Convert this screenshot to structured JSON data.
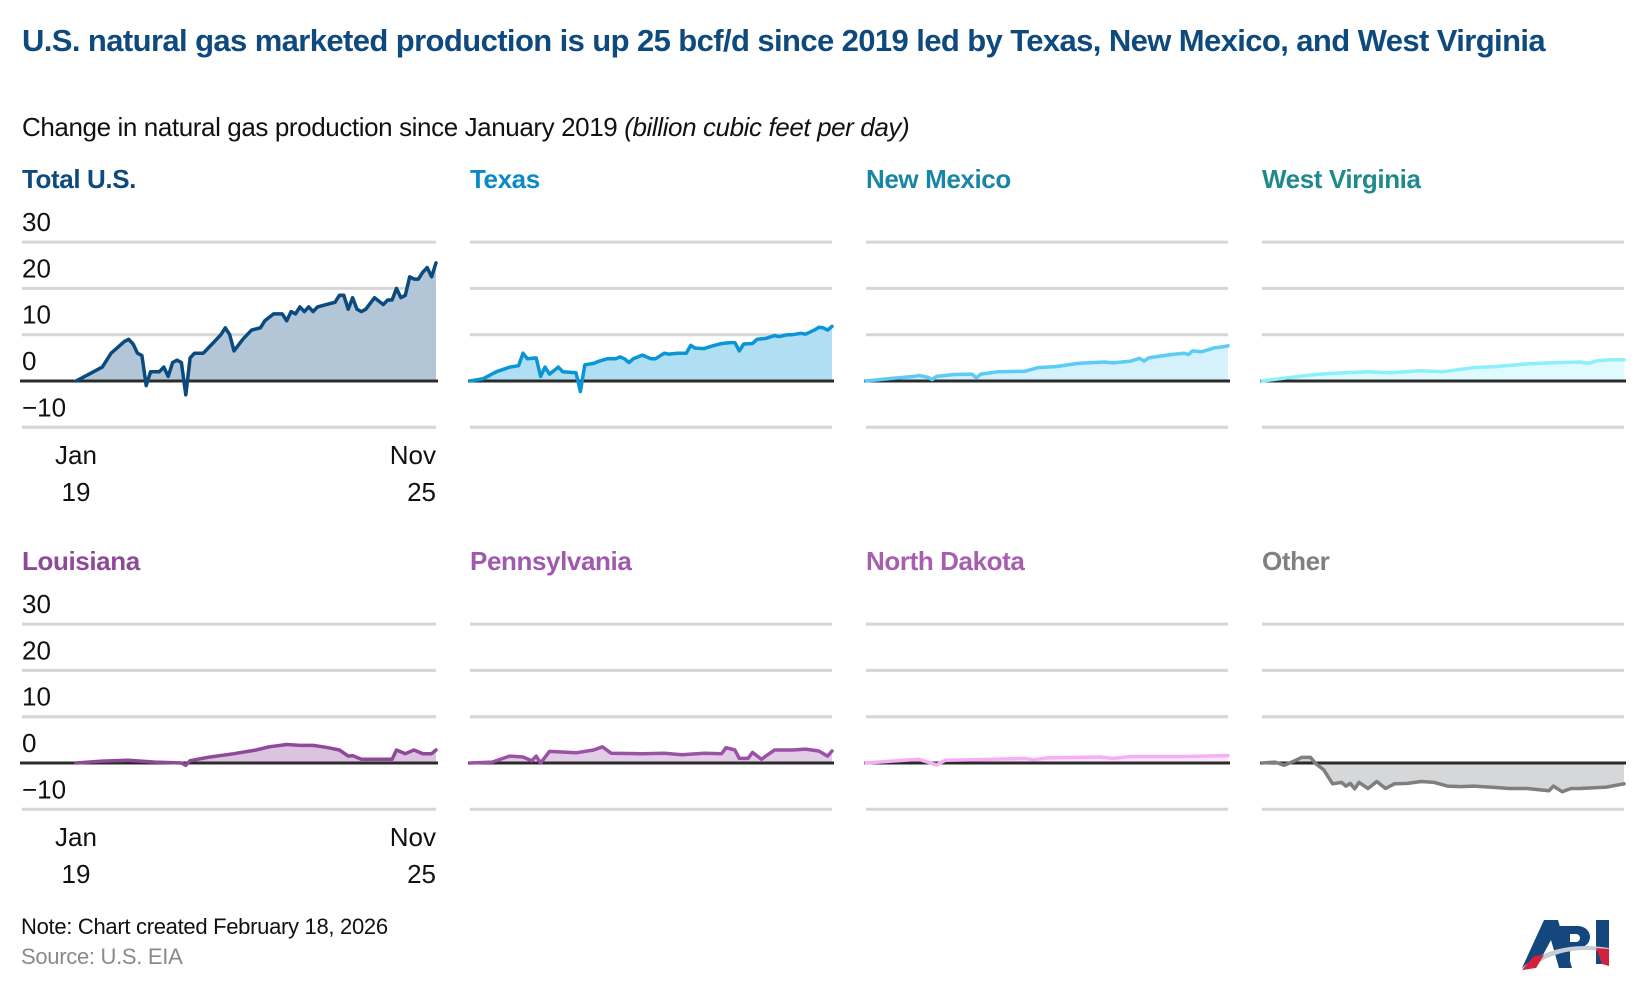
{
  "title": "U.S. natural gas marketed production is up 25 bcf/d since 2019 led by Texas, New Mexico, and West Virginia",
  "subtitle": "Change in natural gas production since January 2019",
  "subtitle_unit": "(billion cubic feet per day)",
  "note": "Note: Chart created February 18, 2026",
  "source": "Source: U.S. EIA",
  "logo_text": "API",
  "chart_data": {
    "type": "area",
    "layout": "small multiples, 2 rows x 4 columns, shared y axis",
    "ylim": [
      -10,
      30
    ],
    "yticks": [
      "30",
      "20",
      "10",
      "0",
      "−10"
    ],
    "ytick_values": [
      30,
      20,
      10,
      0,
      -10
    ],
    "xlim": [
      "2019-01",
      "2025-11"
    ],
    "xticks": [
      {
        "month": "Jan",
        "year": "19"
      },
      {
        "month": "Nov",
        "year": "25"
      }
    ],
    "grid": true,
    "panels": [
      {
        "name": "Total U.S.",
        "title_color": "#0f4a7e",
        "line_color": "#0b4a7e",
        "fill_color": "#b3c6d8",
        "points": [
          [
            "2019-01",
            0
          ],
          [
            "2019-04",
            1.5
          ],
          [
            "2019-07",
            3
          ],
          [
            "2019-09",
            6
          ],
          [
            "2019-12",
            8.5
          ],
          [
            "2020-01",
            9
          ],
          [
            "2020-02",
            8
          ],
          [
            "2020-03",
            6
          ],
          [
            "2020-04",
            5.5
          ],
          [
            "2020-05",
            -1
          ],
          [
            "2020-06",
            2
          ],
          [
            "2020-08",
            2
          ],
          [
            "2020-09",
            3
          ],
          [
            "2020-10",
            1
          ],
          [
            "2020-11",
            4
          ],
          [
            "2020-12",
            4.5
          ],
          [
            "2021-01",
            4
          ],
          [
            "2021-02",
            -3
          ],
          [
            "2021-03",
            5
          ],
          [
            "2021-04",
            6
          ],
          [
            "2021-06",
            6
          ],
          [
            "2021-07",
            7
          ],
          [
            "2021-08",
            8
          ],
          [
            "2021-10",
            10
          ],
          [
            "2021-11",
            11.5
          ],
          [
            "2021-12",
            10
          ],
          [
            "2022-01",
            6.5
          ],
          [
            "2022-03",
            9
          ],
          [
            "2022-05",
            11
          ],
          [
            "2022-07",
            11.5
          ],
          [
            "2022-08",
            13
          ],
          [
            "2022-10",
            14.5
          ],
          [
            "2022-12",
            14.5
          ],
          [
            "2023-01",
            13
          ],
          [
            "2023-02",
            15
          ],
          [
            "2023-03",
            14.5
          ],
          [
            "2023-04",
            16
          ],
          [
            "2023-05",
            15
          ],
          [
            "2023-06",
            16
          ],
          [
            "2023-07",
            15
          ],
          [
            "2023-08",
            16
          ],
          [
            "2023-10",
            16.5
          ],
          [
            "2023-12",
            17
          ],
          [
            "2024-01",
            18.5
          ],
          [
            "2024-02",
            18.5
          ],
          [
            "2024-03",
            15.5
          ],
          [
            "2024-04",
            18
          ],
          [
            "2024-05",
            15.5
          ],
          [
            "2024-06",
            15
          ],
          [
            "2024-07",
            15.5
          ],
          [
            "2024-09",
            18
          ],
          [
            "2024-11",
            16.5
          ],
          [
            "2024-12",
            17.5
          ],
          [
            "2025-01",
            17.5
          ],
          [
            "2025-02",
            20
          ],
          [
            "2025-03",
            18
          ],
          [
            "2025-04",
            18.5
          ],
          [
            "2025-05",
            22.5
          ],
          [
            "2025-06",
            22
          ],
          [
            "2025-07",
            22
          ],
          [
            "2025-08",
            23.5
          ],
          [
            "2025-09",
            24.5
          ],
          [
            "2025-10",
            22.5
          ],
          [
            "2025-11",
            25.5
          ]
        ]
      },
      {
        "name": "Texas",
        "title_color": "#0a8ac8",
        "line_color": "#0a96d6",
        "fill_color": "#b0def3",
        "points": [
          [
            "2019-01",
            0
          ],
          [
            "2019-04",
            0.5
          ],
          [
            "2019-07",
            2
          ],
          [
            "2019-10",
            3
          ],
          [
            "2019-12",
            3.3
          ],
          [
            "2020-01",
            6
          ],
          [
            "2020-02",
            4.8
          ],
          [
            "2020-04",
            5
          ],
          [
            "2020-05",
            1
          ],
          [
            "2020-06",
            3
          ],
          [
            "2020-07",
            1.5
          ],
          [
            "2020-09",
            3
          ],
          [
            "2020-10",
            2
          ],
          [
            "2021-01",
            1.8
          ],
          [
            "2021-02",
            -2.3
          ],
          [
            "2021-03",
            3.5
          ],
          [
            "2021-05",
            3.8
          ],
          [
            "2021-06",
            4.2
          ],
          [
            "2021-08",
            4.8
          ],
          [
            "2021-10",
            4.8
          ],
          [
            "2021-11",
            5.2
          ],
          [
            "2021-12",
            4.8
          ],
          [
            "2022-01",
            4
          ],
          [
            "2022-02",
            4.8
          ],
          [
            "2022-04",
            5.6
          ],
          [
            "2022-06",
            4.8
          ],
          [
            "2022-07",
            4.8
          ],
          [
            "2022-09",
            6
          ],
          [
            "2022-10",
            5.8
          ],
          [
            "2022-12",
            6
          ],
          [
            "2023-02",
            6
          ],
          [
            "2023-03",
            7.7
          ],
          [
            "2023-04",
            7.1
          ],
          [
            "2023-06",
            7
          ],
          [
            "2023-08",
            7.6
          ],
          [
            "2023-10",
            8.1
          ],
          [
            "2023-12",
            8.3
          ],
          [
            "2024-01",
            8.3
          ],
          [
            "2024-02",
            6.5
          ],
          [
            "2024-03",
            8
          ],
          [
            "2024-05",
            8.1
          ],
          [
            "2024-06",
            9
          ],
          [
            "2024-08",
            9.2
          ],
          [
            "2024-10",
            9.8
          ],
          [
            "2024-11",
            9.6
          ],
          [
            "2025-01",
            10
          ],
          [
            "2025-02",
            10
          ],
          [
            "2025-04",
            10.3
          ],
          [
            "2025-05",
            10.1
          ],
          [
            "2025-07",
            11
          ],
          [
            "2025-08",
            11.6
          ],
          [
            "2025-09",
            11.5
          ],
          [
            "2025-10",
            11
          ],
          [
            "2025-11",
            11.8
          ]
        ]
      },
      {
        "name": "New Mexico",
        "title_color": "#1a86a6",
        "line_color": "#5ccbf5",
        "fill_color": "#d4f1fc",
        "points": [
          [
            "2019-01",
            0
          ],
          [
            "2019-06",
            0.5
          ],
          [
            "2019-12",
            1.0
          ],
          [
            "2020-01",
            1.2
          ],
          [
            "2020-03",
            0.8
          ],
          [
            "2020-04",
            0.3
          ],
          [
            "2020-05",
            1.0
          ],
          [
            "2020-09",
            1.4
          ],
          [
            "2021-01",
            1.5
          ],
          [
            "2021-02",
            0.7
          ],
          [
            "2021-03",
            1.5
          ],
          [
            "2021-07",
            2
          ],
          [
            "2022-01",
            2.1
          ],
          [
            "2022-04",
            2.9
          ],
          [
            "2022-08",
            3.1
          ],
          [
            "2023-01",
            3.8
          ],
          [
            "2023-07",
            4.1
          ],
          [
            "2023-09",
            3.9
          ],
          [
            "2024-01",
            4.3
          ],
          [
            "2024-03",
            4.9
          ],
          [
            "2024-04",
            4.3
          ],
          [
            "2024-05",
            5.0
          ],
          [
            "2024-10",
            5.7
          ],
          [
            "2025-01",
            6.0
          ],
          [
            "2025-02",
            5.7
          ],
          [
            "2025-03",
            6.5
          ],
          [
            "2025-05",
            6.3
          ],
          [
            "2025-08",
            7.2
          ],
          [
            "2025-10",
            7.4
          ],
          [
            "2025-11",
            7.6
          ]
        ]
      },
      {
        "name": "West Virginia",
        "title_color": "#1f8a8c",
        "line_color": "#8cf0fa",
        "fill_color": "#e0fbfd",
        "points": [
          [
            "2019-01",
            0
          ],
          [
            "2019-06",
            0.6
          ],
          [
            "2020-01",
            1.4
          ],
          [
            "2020-06",
            1.7
          ],
          [
            "2021-01",
            2.0
          ],
          [
            "2021-06",
            1.8
          ],
          [
            "2022-01",
            2.2
          ],
          [
            "2022-06",
            2.0
          ],
          [
            "2023-01",
            2.9
          ],
          [
            "2023-06",
            3.1
          ],
          [
            "2024-01",
            3.7
          ],
          [
            "2024-06",
            3.9
          ],
          [
            "2025-01",
            4.1
          ],
          [
            "2025-03",
            3.8
          ],
          [
            "2025-05",
            4.4
          ],
          [
            "2025-08",
            4.6
          ],
          [
            "2025-11",
            4.6
          ]
        ]
      },
      {
        "name": "Louisiana",
        "title_color": "#8e4a99",
        "line_color": "#8e4a99",
        "fill_color": "#dcc4e0",
        "points": [
          [
            "2019-01",
            0
          ],
          [
            "2019-07",
            0.4
          ],
          [
            "2020-01",
            0.6
          ],
          [
            "2020-07",
            0.2
          ],
          [
            "2021-01",
            0
          ],
          [
            "2021-02",
            -0.5
          ],
          [
            "2021-03",
            0.5
          ],
          [
            "2021-07",
            1.2
          ],
          [
            "2022-01",
            2
          ],
          [
            "2022-06",
            2.8
          ],
          [
            "2022-09",
            3.5
          ],
          [
            "2023-01",
            4
          ],
          [
            "2023-04",
            3.8
          ],
          [
            "2023-07",
            3.8
          ],
          [
            "2023-10",
            3.4
          ],
          [
            "2024-01",
            2.8
          ],
          [
            "2024-03",
            1.5
          ],
          [
            "2024-04",
            1.6
          ],
          [
            "2024-06",
            0.8
          ],
          [
            "2024-09",
            0.8
          ],
          [
            "2025-01",
            0.8
          ],
          [
            "2025-02",
            2.8
          ],
          [
            "2025-04",
            2.0
          ],
          [
            "2025-06",
            2.8
          ],
          [
            "2025-08",
            2.0
          ],
          [
            "2025-10",
            2.0
          ],
          [
            "2025-11",
            2.8
          ]
        ]
      },
      {
        "name": "Pennsylvania",
        "title_color": "#a05aad",
        "line_color": "#9b52a6",
        "fill_color": "#e2cde6",
        "points": [
          [
            "2019-01",
            0
          ],
          [
            "2019-06",
            0.2
          ],
          [
            "2019-10",
            1.5
          ],
          [
            "2020-01",
            1.3
          ],
          [
            "2020-03",
            0.5
          ],
          [
            "2020-04",
            1.5
          ],
          [
            "2020-05",
            0
          ],
          [
            "2020-07",
            2.5
          ],
          [
            "2021-01",
            2.2
          ],
          [
            "2021-05",
            2.8
          ],
          [
            "2021-07",
            3.5
          ],
          [
            "2021-09",
            2.1
          ],
          [
            "2022-04",
            2.0
          ],
          [
            "2022-09",
            2.1
          ],
          [
            "2023-01",
            1.8
          ],
          [
            "2023-06",
            2.1
          ],
          [
            "2023-10",
            2.0
          ],
          [
            "2023-11",
            3.3
          ],
          [
            "2024-01",
            2.8
          ],
          [
            "2024-02",
            1.0
          ],
          [
            "2024-04",
            1.0
          ],
          [
            "2024-05",
            2.3
          ],
          [
            "2024-07",
            0.8
          ],
          [
            "2024-08",
            1.5
          ],
          [
            "2024-10",
            2.8
          ],
          [
            "2025-02",
            2.8
          ],
          [
            "2025-05",
            3.0
          ],
          [
            "2025-08",
            2.6
          ],
          [
            "2025-10",
            1.5
          ],
          [
            "2025-11",
            2.6
          ]
        ]
      },
      {
        "name": "North Dakota",
        "title_color": "#a85eaf",
        "line_color": "#f7aef5",
        "fill_color": "#fbe6fa",
        "points": [
          [
            "2019-01",
            0
          ],
          [
            "2019-08",
            0.5
          ],
          [
            "2020-01",
            0.8
          ],
          [
            "2020-04",
            -0.1
          ],
          [
            "2020-05",
            -0.4
          ],
          [
            "2020-07",
            0.6
          ],
          [
            "2021-01",
            0.7
          ],
          [
            "2022-01",
            1.0
          ],
          [
            "2022-03",
            0.7
          ],
          [
            "2022-06",
            1.1
          ],
          [
            "2023-06",
            1.3
          ],
          [
            "2023-09",
            1.0
          ],
          [
            "2024-01",
            1.4
          ],
          [
            "2025-01",
            1.4
          ],
          [
            "2025-11",
            1.6
          ]
        ]
      },
      {
        "name": "Other",
        "title_color": "#808080",
        "line_color": "#7f7f7f",
        "fill_color": "#d6d7d9",
        "points": [
          [
            "2019-01",
            0
          ],
          [
            "2019-04",
            0.2
          ],
          [
            "2019-06",
            -0.5
          ],
          [
            "2019-08",
            0.3
          ],
          [
            "2019-10",
            1.2
          ],
          [
            "2019-12",
            1.2
          ],
          [
            "2020-01",
            0
          ],
          [
            "2020-03",
            -1.5
          ],
          [
            "2020-05",
            -4.5
          ],
          [
            "2020-07",
            -4.2
          ],
          [
            "2020-08",
            -5
          ],
          [
            "2020-09",
            -4.4
          ],
          [
            "2020-10",
            -5.6
          ],
          [
            "2020-11",
            -4.2
          ],
          [
            "2021-01",
            -5.5
          ],
          [
            "2021-03",
            -4
          ],
          [
            "2021-05",
            -5.5
          ],
          [
            "2021-07",
            -4.5
          ],
          [
            "2021-10",
            -4.4
          ],
          [
            "2022-01",
            -4
          ],
          [
            "2022-04",
            -4.2
          ],
          [
            "2022-07",
            -5
          ],
          [
            "2022-10",
            -5.1
          ],
          [
            "2023-01",
            -5
          ],
          [
            "2023-06",
            -5.3
          ],
          [
            "2023-09",
            -5.5
          ],
          [
            "2024-01",
            -5.5
          ],
          [
            "2024-06",
            -6
          ],
          [
            "2024-07",
            -5
          ],
          [
            "2024-09",
            -6.2
          ],
          [
            "2024-11",
            -5.5
          ],
          [
            "2025-01",
            -5.5
          ],
          [
            "2025-07",
            -5.2
          ],
          [
            "2025-11",
            -4.5
          ]
        ]
      }
    ]
  }
}
